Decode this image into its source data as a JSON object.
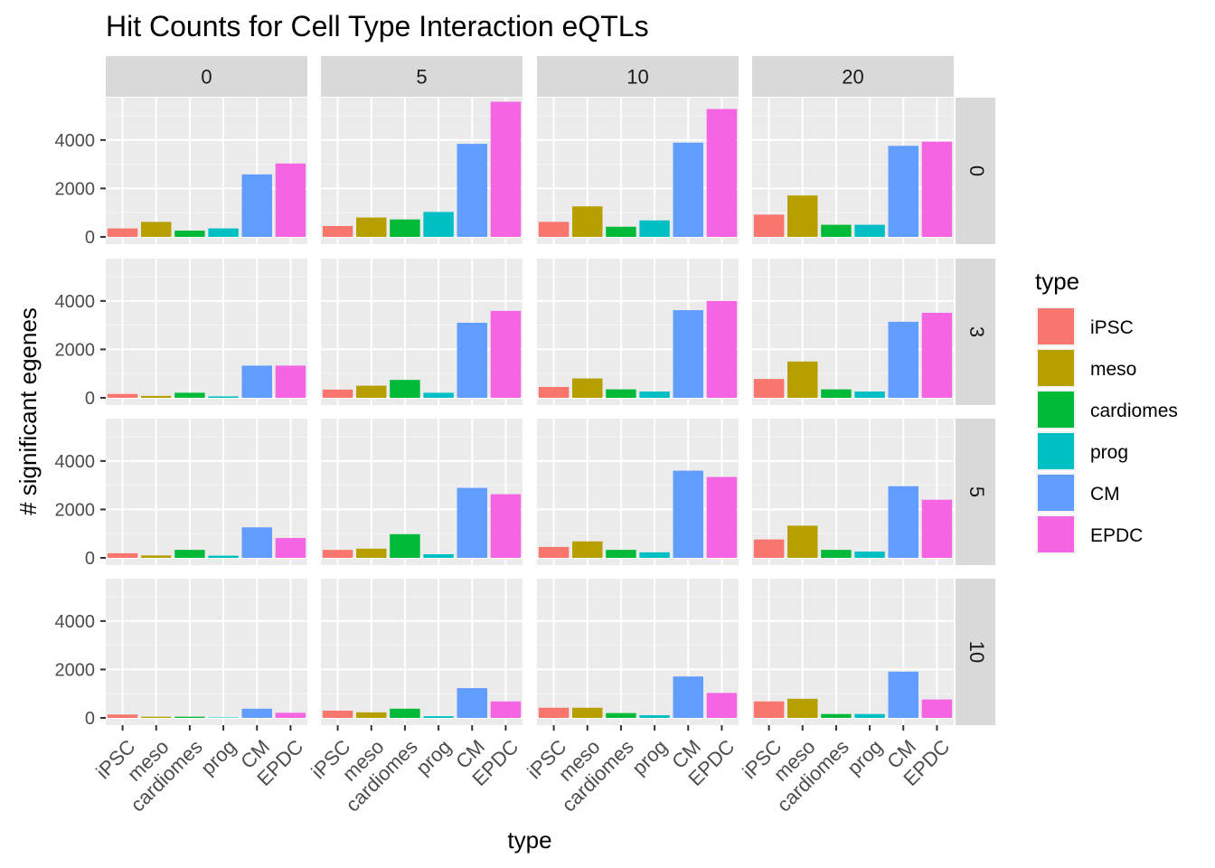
{
  "chart_data": {
    "type": "bar",
    "title": "Hit Counts for Cell Type Interaction eQTLs",
    "xlabel": "type",
    "ylabel": "# significant egenes",
    "ylim": [
      0,
      5600
    ],
    "yticks": [
      0,
      2000,
      4000
    ],
    "grid": true,
    "legend": {
      "title": "type",
      "position": "right"
    },
    "categories": [
      "iPSC",
      "meso",
      "cardiomes",
      "prog",
      "CM",
      "EPDC"
    ],
    "colors": {
      "iPSC": "#F8766D",
      "meso": "#B79F00",
      "cardiomes": "#00BA38",
      "prog": "#00BFC4",
      "CM": "#619CFF",
      "EPDC": "#F564E3"
    },
    "column_facets": [
      "0",
      "5",
      "10",
      "20"
    ],
    "row_facets": [
      "0",
      "3",
      "5",
      "10"
    ],
    "panels": [
      [
        [
          350,
          620,
          260,
          350,
          2580,
          3030
        ],
        [
          450,
          800,
          720,
          1030,
          3840,
          5580
        ],
        [
          620,
          1260,
          420,
          680,
          3890,
          5280
        ],
        [
          920,
          1710,
          500,
          500,
          3760,
          3930
        ]
      ],
      [
        [
          160,
          80,
          210,
          60,
          1330,
          1330
        ],
        [
          340,
          500,
          740,
          210,
          3100,
          3590
        ],
        [
          450,
          800,
          350,
          260,
          3620,
          4000
        ],
        [
          780,
          1500,
          350,
          260,
          3140,
          3510
        ]
      ],
      [
        [
          190,
          100,
          330,
          90,
          1260,
          820
        ],
        [
          330,
          380,
          980,
          150,
          2890,
          2630
        ],
        [
          450,
          680,
          330,
          230,
          3600,
          3340
        ],
        [
          760,
          1330,
          330,
          260,
          2960,
          2400
        ]
      ],
      [
        [
          140,
          50,
          50,
          20,
          380,
          210
        ],
        [
          300,
          230,
          380,
          70,
          1230,
          680
        ],
        [
          420,
          420,
          200,
          110,
          1710,
          1030
        ],
        [
          680,
          790,
          160,
          160,
          1910,
          760
        ]
      ]
    ]
  }
}
